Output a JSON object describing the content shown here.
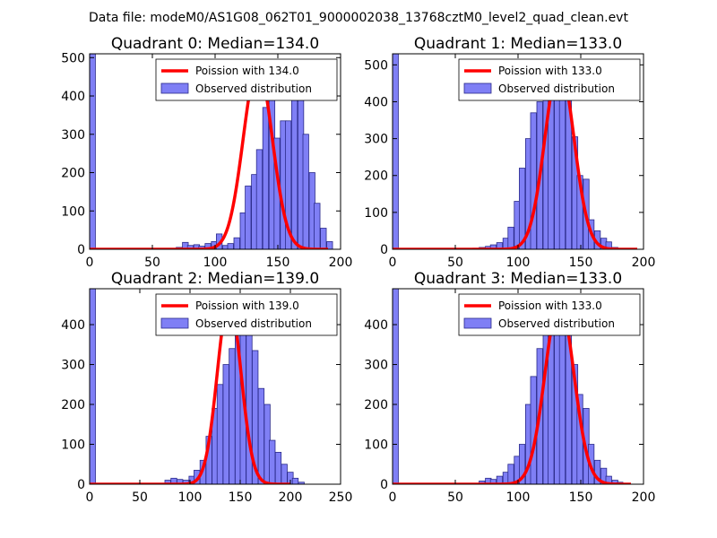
{
  "suptitle": "Data file: modeM0/AS1G08_062T01_9000002038_13768cztM0_level2_quad_clean.evt",
  "colors": {
    "bar_fill": "#7f7ff5",
    "bar_edge": "#2a2a8a",
    "fit_line": "#ff0000"
  },
  "chart_data": [
    {
      "type": "bar",
      "title": "Quadrant 0: Median=134.0",
      "legend": [
        "Poission with 134.0",
        "Observed distribution"
      ],
      "legend_position": "top-right",
      "xlim": [
        0,
        200
      ],
      "ylim": [
        0,
        510
      ],
      "xticks": [
        0,
        50,
        100,
        150,
        200
      ],
      "yticks": [
        0,
        100,
        200,
        300,
        400,
        500
      ],
      "bin_width": 4.6,
      "bins": [
        [
          0,
          510
        ],
        [
          69,
          5
        ],
        [
          74,
          18
        ],
        [
          78,
          10
        ],
        [
          83,
          12
        ],
        [
          87,
          8
        ],
        [
          92,
          15
        ],
        [
          97,
          20
        ],
        [
          101,
          40
        ],
        [
          106,
          10
        ],
        [
          110,
          15
        ],
        [
          115,
          30
        ],
        [
          120,
          95
        ],
        [
          124,
          165
        ],
        [
          129,
          195
        ],
        [
          133,
          260
        ],
        [
          138,
          370
        ],
        [
          143,
          410
        ],
        [
          147,
          290
        ],
        [
          152,
          335
        ],
        [
          156,
          335
        ],
        [
          161,
          430
        ],
        [
          166,
          435
        ],
        [
          170,
          300
        ],
        [
          175,
          200
        ],
        [
          179,
          120
        ],
        [
          184,
          55
        ],
        [
          189,
          20
        ]
      ],
      "poisson_mean": 134.0,
      "poisson_peak": 478,
      "fit_range": [
        0,
        190
      ]
    },
    {
      "type": "bar",
      "title": "Quadrant 1: Median=133.0",
      "legend": [
        "Poission with 133.0",
        "Observed distribution"
      ],
      "legend_position": "top-right",
      "xlim": [
        0,
        200
      ],
      "ylim": [
        0,
        530
      ],
      "xticks": [
        0,
        50,
        100,
        150,
        200
      ],
      "yticks": [
        0,
        100,
        200,
        300,
        400,
        500
      ],
      "bin_width": 4.6,
      "bins": [
        [
          0,
          530
        ],
        [
          64,
          3
        ],
        [
          69,
          5
        ],
        [
          74,
          8
        ],
        [
          78,
          12
        ],
        [
          83,
          18
        ],
        [
          88,
          30
        ],
        [
          92,
          60
        ],
        [
          97,
          130
        ],
        [
          101,
          220
        ],
        [
          106,
          300
        ],
        [
          110,
          370
        ],
        [
          115,
          400
        ],
        [
          120,
          410
        ],
        [
          124,
          440
        ],
        [
          129,
          490
        ],
        [
          133,
          470
        ],
        [
          138,
          450
        ],
        [
          143,
          305
        ],
        [
          147,
          200
        ],
        [
          152,
          190
        ],
        [
          156,
          80
        ],
        [
          161,
          50
        ],
        [
          166,
          30
        ],
        [
          170,
          20
        ],
        [
          175,
          5
        ]
      ],
      "poisson_mean": 133.0,
      "poisson_peak": 500,
      "fit_range": [
        0,
        195
      ]
    },
    {
      "type": "bar",
      "title": "Quadrant 2: Median=139.0",
      "legend": [
        "Poission with 139.0",
        "Observed distribution"
      ],
      "legend_position": "top-right",
      "xlim": [
        0,
        250
      ],
      "ylim": [
        0,
        490
      ],
      "xticks": [
        0,
        50,
        100,
        150,
        200,
        250
      ],
      "yticks": [
        0,
        100,
        200,
        300,
        400
      ],
      "bin_width": 5.8,
      "bins": [
        [
          0,
          490
        ],
        [
          75,
          10
        ],
        [
          81,
          15
        ],
        [
          87,
          12
        ],
        [
          93,
          10
        ],
        [
          99,
          20
        ],
        [
          104,
          35
        ],
        [
          110,
          60
        ],
        [
          116,
          120
        ],
        [
          122,
          190
        ],
        [
          127,
          250
        ],
        [
          133,
          300
        ],
        [
          139,
          340
        ],
        [
          145,
          390
        ],
        [
          150,
          430
        ],
        [
          156,
          410
        ],
        [
          162,
          335
        ],
        [
          168,
          240
        ],
        [
          174,
          200
        ],
        [
          179,
          110
        ],
        [
          185,
          80
        ],
        [
          191,
          50
        ],
        [
          197,
          30
        ],
        [
          202,
          15
        ],
        [
          208,
          5
        ]
      ],
      "poisson_mean": 139.0,
      "poisson_peak": 462,
      "fit_range": [
        0,
        200
      ]
    },
    {
      "type": "bar",
      "title": "Quadrant 3: Median=133.0",
      "legend": [
        "Poission with 133.0",
        "Observed distribution"
      ],
      "legend_position": "top-right",
      "xlim": [
        0,
        200
      ],
      "ylim": [
        0,
        490
      ],
      "xticks": [
        0,
        50,
        100,
        150,
        200
      ],
      "yticks": [
        0,
        100,
        200,
        300,
        400
      ],
      "bin_width": 4.6,
      "bins": [
        [
          0,
          490
        ],
        [
          69,
          8
        ],
        [
          74,
          15
        ],
        [
          78,
          12
        ],
        [
          83,
          20
        ],
        [
          88,
          30
        ],
        [
          92,
          50
        ],
        [
          97,
          70
        ],
        [
          101,
          100
        ],
        [
          106,
          200
        ],
        [
          110,
          270
        ],
        [
          115,
          340
        ],
        [
          120,
          410
        ],
        [
          124,
          450
        ],
        [
          129,
          470
        ],
        [
          133,
          460
        ],
        [
          138,
          450
        ],
        [
          143,
          300
        ],
        [
          147,
          225
        ],
        [
          152,
          190
        ],
        [
          156,
          100
        ],
        [
          161,
          60
        ],
        [
          166,
          40
        ],
        [
          170,
          20
        ],
        [
          175,
          10
        ],
        [
          179,
          5
        ]
      ],
      "poisson_mean": 133.0,
      "poisson_peak": 458,
      "fit_range": [
        0,
        190
      ]
    }
  ]
}
